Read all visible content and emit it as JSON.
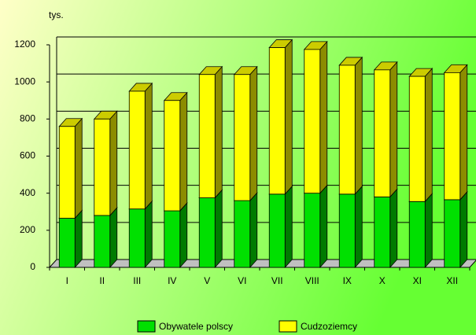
{
  "chart_data": {
    "type": "bar",
    "stacked": true,
    "y_label": "tys.",
    "categories": [
      "I",
      "II",
      "III",
      "IV",
      "V",
      "VI",
      "VII",
      "VIII",
      "IX",
      "X",
      "XI",
      "XII"
    ],
    "series": [
      {
        "name": "Obywatele polscy",
        "color": "#00e000",
        "values": [
          265,
          280,
          315,
          305,
          375,
          360,
          395,
          400,
          395,
          380,
          355,
          365
        ]
      },
      {
        "name": "Cudzoziemcy",
        "color": "#ffff00",
        "values": [
          495,
          520,
          635,
          595,
          665,
          680,
          790,
          775,
          695,
          685,
          675,
          685
        ]
      }
    ],
    "ylim": [
      0,
      1200
    ],
    "yticks": [
      0,
      200,
      400,
      600,
      800,
      1000,
      1200
    ],
    "grid": true
  }
}
